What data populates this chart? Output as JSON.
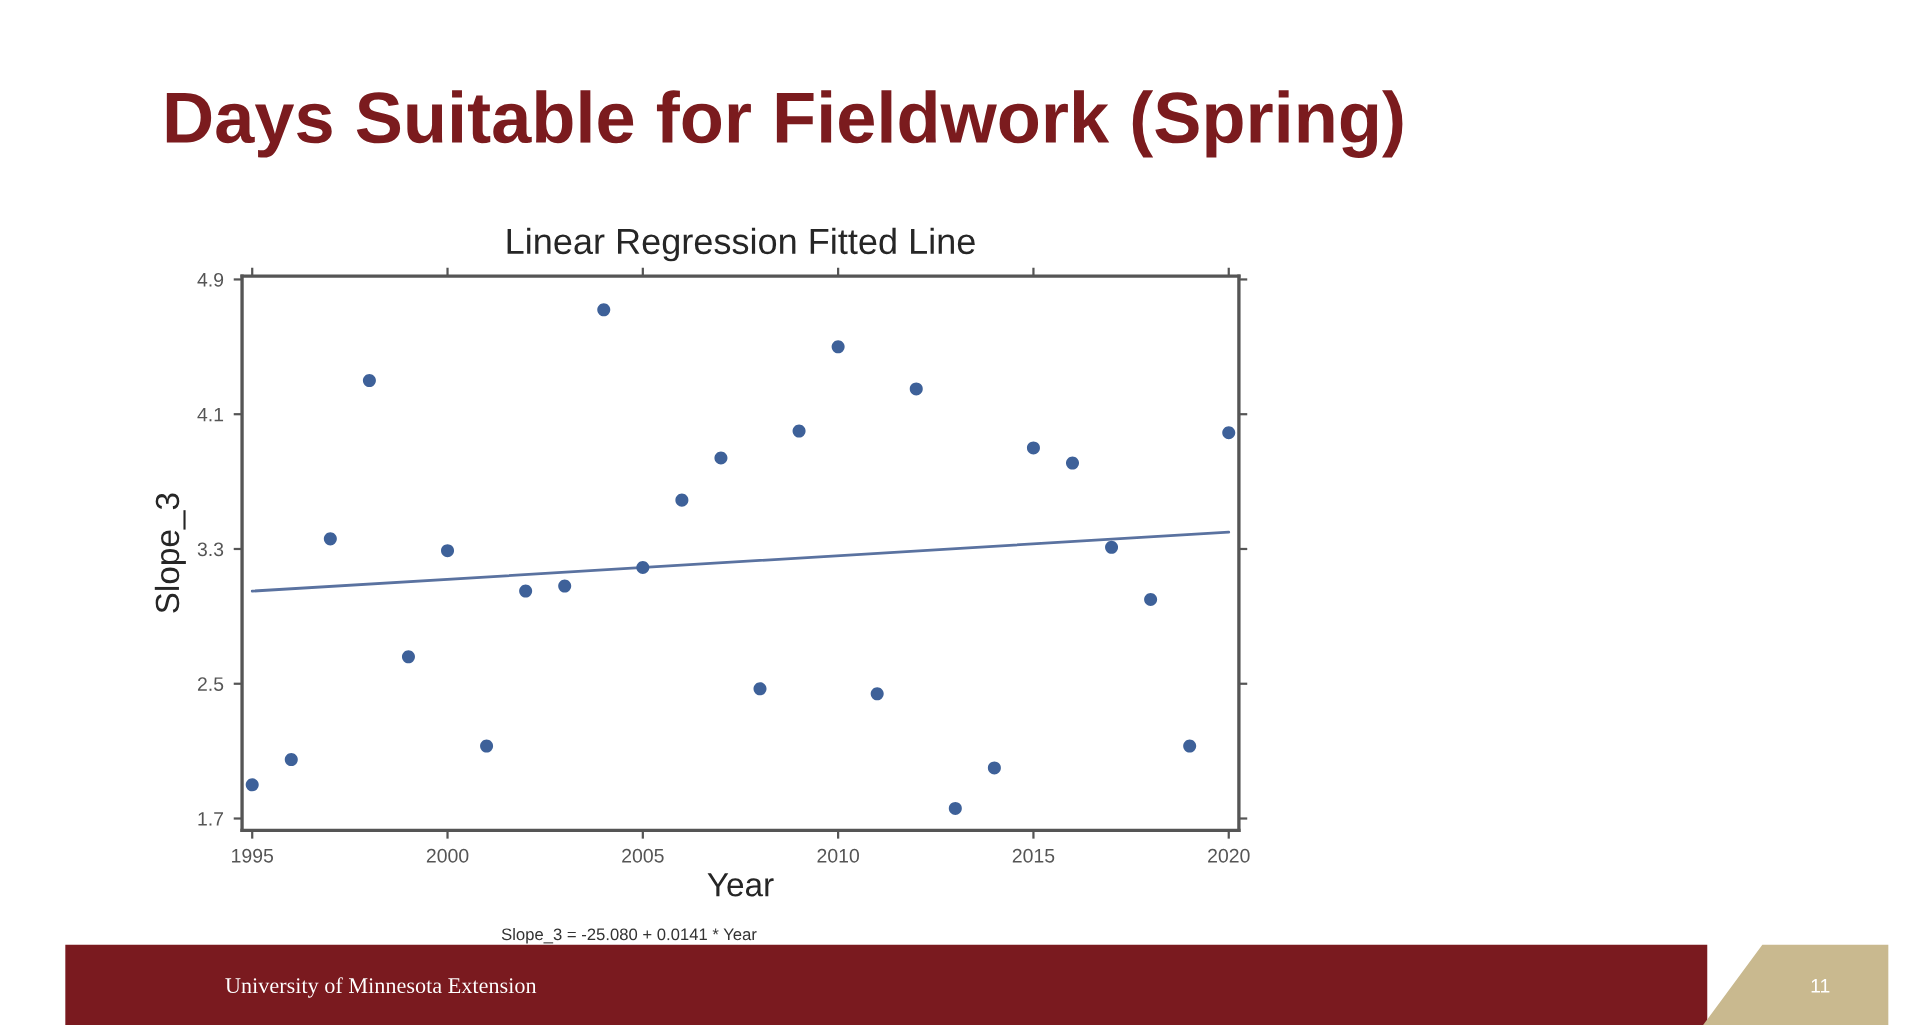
{
  "chart_data": {
    "type": "scatter",
    "title": "Days Suitable for Fieldwork (Spring)",
    "subtitle": "Linear Regression Fitted Line",
    "xlabel": "Year",
    "ylabel": "Slope_3",
    "xlim": [
      1994.74,
      2020.26
    ],
    "xticks": [
      1995,
      2000,
      2005,
      2010,
      2015,
      2020
    ],
    "ylim": [
      1.63,
      4.92
    ],
    "yticks": [
      1.7,
      2.5,
      3.3,
      4.1,
      4.9
    ],
    "series": [
      {
        "color": "#3e6199",
        "marker": "circle",
        "x": [
          1995,
          1996,
          1997,
          1998,
          1999,
          2000,
          2001,
          2002,
          2003,
          2004,
          2005,
          2006,
          2007,
          2008,
          2009,
          2010,
          2011,
          2012,
          2013,
          2014,
          2015,
          2016,
          2017,
          2018,
          2019,
          2020
        ],
        "values": [
          1.9,
          2.05,
          3.36,
          4.3,
          2.66,
          3.29,
          2.13,
          3.05,
          3.08,
          4.72,
          3.19,
          3.59,
          3.84,
          2.47,
          4.0,
          4.5,
          2.44,
          4.25,
          1.76,
          2.0,
          3.9,
          3.81,
          3.31,
          3.0,
          2.13,
          3.99
        ]
      },
      {
        "type": "line",
        "color": "#5a72a0",
        "x": [
          1995,
          2020
        ],
        "values": [
          3.05,
          3.4
        ]
      }
    ],
    "annotations": [
      "Slope_3 = -25.080 + 0.0141 * Year",
      "University of Minnesota Extension",
      "11"
    ]
  }
}
